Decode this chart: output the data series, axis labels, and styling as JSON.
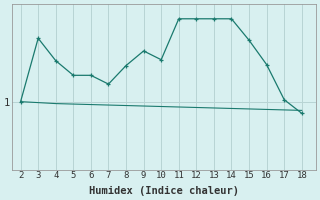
{
  "xlabel": "Humidex (Indice chaleur)",
  "x_values": [
    2,
    3,
    4,
    5,
    6,
    7,
    8,
    9,
    10,
    11,
    12,
    13,
    14,
    15,
    16,
    17,
    18
  ],
  "y_line1": [
    1.0,
    1.65,
    1.42,
    1.27,
    1.27,
    1.18,
    1.37,
    1.52,
    1.43,
    1.85,
    1.85,
    1.85,
    1.85,
    1.63,
    1.38,
    1.02,
    0.88
  ],
  "y_line2": [
    1.0,
    0.99,
    0.98,
    0.975,
    0.97,
    0.965,
    0.96,
    0.955,
    0.95,
    0.945,
    0.94,
    0.935,
    0.93,
    0.925,
    0.92,
    0.915,
    0.91
  ],
  "line_color": "#1a7a6e",
  "bg_color": "#d8f0f0",
  "grid_color": "#b8d4d4",
  "ytick_label": "1",
  "ytick_val": 1.0,
  "ylim_bottom": 0.3,
  "ylim_top": 2.0,
  "xlim_left": 1.5,
  "xlim_right": 18.8,
  "figsize": [
    3.2,
    2.0
  ],
  "dpi": 100
}
